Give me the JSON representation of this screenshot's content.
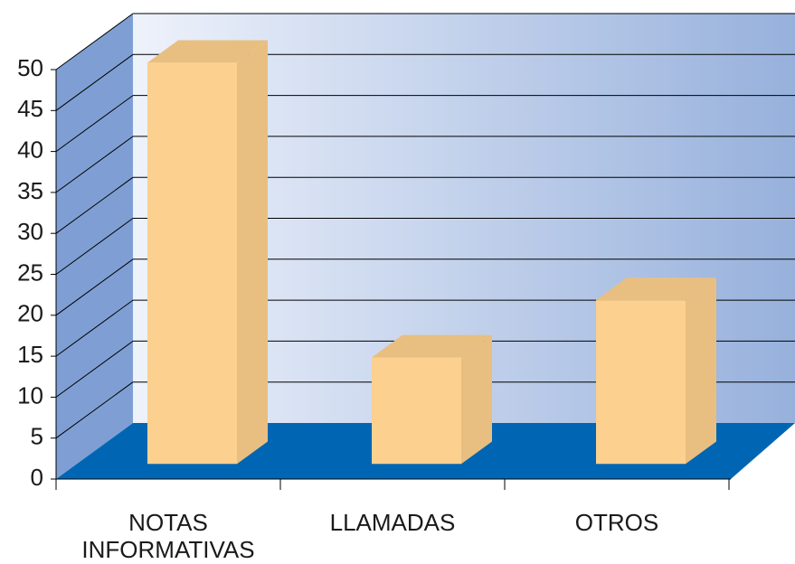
{
  "chart_data": {
    "type": "bar3d",
    "categories": [
      "NOTAS INFORMATIVAS",
      "LLAMADAS",
      "OTROS"
    ],
    "values": [
      49,
      13,
      20
    ],
    "color": "#fcd08f",
    "ylim": [
      0,
      50
    ],
    "yticks": [
      0,
      5,
      10,
      15,
      20,
      25,
      30,
      35,
      40,
      45,
      50
    ],
    "grid": true
  }
}
